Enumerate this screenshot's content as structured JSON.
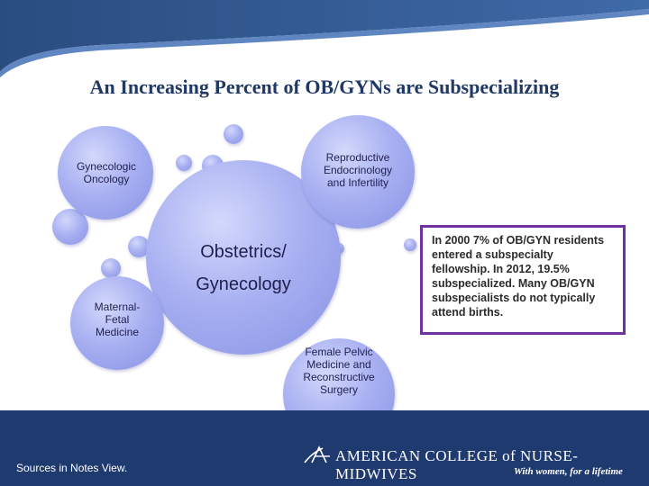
{
  "title": "An Increasing Percent of OB/GYNs are Subspecializing",
  "center": {
    "line1": "Obstetrics/",
    "line2": "Gynecology"
  },
  "subspecialties": {
    "gyn_onc": {
      "line1": "Gynecologic",
      "line2": "Oncology"
    },
    "rei": {
      "line1": "Reproductive",
      "line2": "Endocrinology",
      "line3": "and Infertility"
    },
    "mfm": {
      "line1": "Maternal-",
      "line2": "Fetal",
      "line3": "Medicine"
    },
    "fpmrs": {
      "line1": "Female Pelvic",
      "line2": "Medicine and",
      "line3": "Reconstructive",
      "line4": "Surgery"
    }
  },
  "info_box": {
    "text": "In 2000 7% of OB/GYN residents entered a subspecialty fellowship.  In 2012, 19.5% subspecialized.  Many OB/GYN subspecialists do not typically attend births."
  },
  "footer": {
    "sources": "Sources in Notes View.",
    "org_name": "AMERICAN COLLEGE of NURSE-MIDWIVES",
    "tagline": "With women, for a lifetime"
  },
  "colors": {
    "header": "#2b4f83",
    "footer": "#1f3a6e",
    "bubble": "#a9b1f2",
    "border": "#7030a0",
    "title": "#1f3864"
  }
}
